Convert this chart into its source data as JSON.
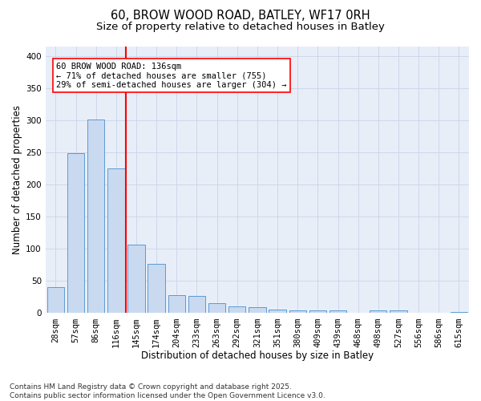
{
  "title_line1": "60, BROW WOOD ROAD, BATLEY, WF17 0RH",
  "title_line2": "Size of property relative to detached houses in Batley",
  "xlabel": "Distribution of detached houses by size in Batley",
  "ylabel": "Number of detached properties",
  "categories": [
    "28sqm",
    "57sqm",
    "86sqm",
    "116sqm",
    "145sqm",
    "174sqm",
    "204sqm",
    "233sqm",
    "263sqm",
    "292sqm",
    "321sqm",
    "351sqm",
    "380sqm",
    "409sqm",
    "439sqm",
    "468sqm",
    "498sqm",
    "527sqm",
    "556sqm",
    "586sqm",
    "615sqm"
  ],
  "values": [
    40,
    249,
    301,
    225,
    106,
    77,
    28,
    27,
    16,
    10,
    9,
    5,
    4,
    4,
    4,
    0,
    4,
    4,
    0,
    0,
    2
  ],
  "bar_color": "#c9d9f0",
  "bar_edge_color": "#5b9bd5",
  "vline_x_index": 3.5,
  "vline_color": "red",
  "annotation_text": "60 BROW WOOD ROAD: 136sqm\n← 71% of detached houses are smaller (755)\n29% of semi-detached houses are larger (304) →",
  "annotation_box_color": "white",
  "annotation_box_edge": "red",
  "ylim": [
    0,
    415
  ],
  "yticks": [
    0,
    50,
    100,
    150,
    200,
    250,
    300,
    350,
    400
  ],
  "grid_color": "#c8d4e8",
  "bg_color": "#e8eef8",
  "footer": "Contains HM Land Registry data © Crown copyright and database right 2025.\nContains public sector information licensed under the Open Government Licence v3.0.",
  "title_fontsize": 10.5,
  "subtitle_fontsize": 9.5,
  "axis_label_fontsize": 8.5,
  "tick_fontsize": 7.5,
  "annotation_fontsize": 7.5,
  "footer_fontsize": 6.5
}
